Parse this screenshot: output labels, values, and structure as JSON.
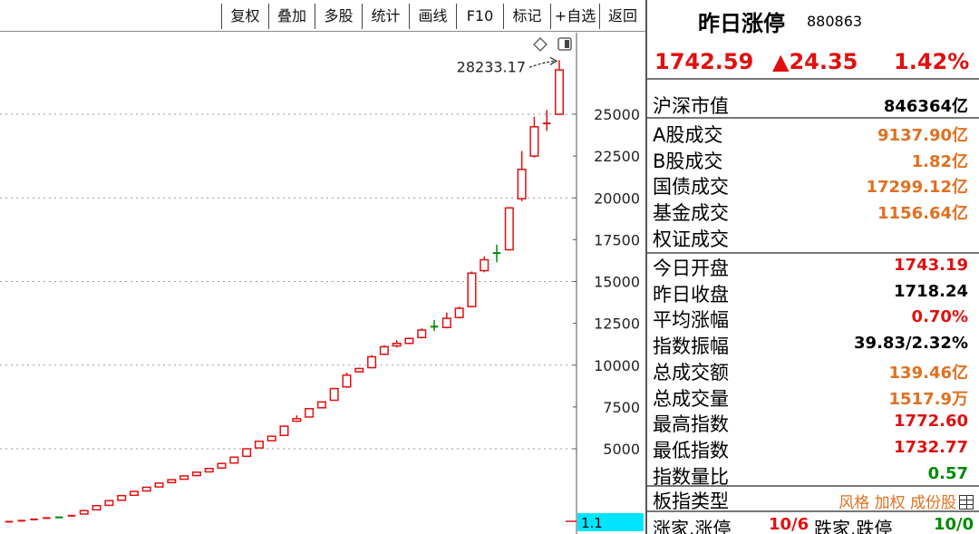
{
  "toolbar": {
    "buttons": [
      "复权",
      "叠加",
      "多股",
      "统计",
      "画线",
      "F10",
      "标记",
      "+自选",
      "返回"
    ]
  },
  "chart": {
    "y_axis_ticks": [
      "25000",
      "22500",
      "20000",
      "17500",
      "15000",
      "12500",
      "10000",
      "7500",
      "5000"
    ],
    "high_annotation": "28233.17",
    "cursor_box_value": "1.1",
    "cursor_box_color": "#00e5ff",
    "icons": [
      "diamond-icon",
      "panel-toggle-icon"
    ]
  },
  "chart_data": {
    "type": "candlestick",
    "title": "",
    "xlabel": "",
    "ylabel": "",
    "ylim": [
      0,
      30000
    ],
    "y_ticks": [
      5000,
      7500,
      10000,
      12500,
      15000,
      17500,
      20000,
      22500,
      25000
    ],
    "high_label": 28233.17,
    "up_color": "#e01010",
    "doji_color": "#008a00",
    "candles": [
      {
        "o": 600,
        "c": 640,
        "h": 660,
        "l": 580
      },
      {
        "o": 660,
        "c": 700,
        "h": 720,
        "l": 640
      },
      {
        "o": 740,
        "c": 780,
        "h": 800,
        "l": 720
      },
      {
        "o": 820,
        "c": 860,
        "h": 880,
        "l": 800
      },
      {
        "o": 900,
        "c": 900,
        "h": 920,
        "l": 880,
        "doji": true
      },
      {
        "o": 960,
        "c": 1000,
        "h": 1020,
        "l": 940
      },
      {
        "o": 1100,
        "c": 1300,
        "h": 1340,
        "l": 1080
      },
      {
        "o": 1350,
        "c": 1600,
        "h": 1640,
        "l": 1330
      },
      {
        "o": 1620,
        "c": 1900,
        "h": 1940,
        "l": 1600
      },
      {
        "o": 1920,
        "c": 2200,
        "h": 2240,
        "l": 1900
      },
      {
        "o": 2220,
        "c": 2450,
        "h": 2490,
        "l": 2200
      },
      {
        "o": 2480,
        "c": 2700,
        "h": 2740,
        "l": 2460
      },
      {
        "o": 2720,
        "c": 2950,
        "h": 2990,
        "l": 2700
      },
      {
        "o": 2980,
        "c": 3150,
        "h": 3190,
        "l": 2960
      },
      {
        "o": 3180,
        "c": 3380,
        "h": 3420,
        "l": 3160
      },
      {
        "o": 3400,
        "c": 3600,
        "h": 3640,
        "l": 3380
      },
      {
        "o": 3620,
        "c": 3820,
        "h": 3860,
        "l": 3600
      },
      {
        "o": 3850,
        "c": 4120,
        "h": 4160,
        "l": 3830
      },
      {
        "o": 4150,
        "c": 4500,
        "h": 4540,
        "l": 4130
      },
      {
        "o": 4550,
        "c": 5000,
        "h": 5040,
        "l": 4530
      },
      {
        "o": 5050,
        "c": 5450,
        "h": 5490,
        "l": 5030
      },
      {
        "o": 5480,
        "c": 5750,
        "h": 5790,
        "l": 5460
      },
      {
        "o": 5800,
        "c": 6350,
        "h": 6390,
        "l": 5780
      },
      {
        "o": 6650,
        "c": 6800,
        "h": 7000,
        "l": 6600
      },
      {
        "o": 6900,
        "c": 7400,
        "h": 7440,
        "l": 6880
      },
      {
        "o": 7450,
        "c": 7800,
        "h": 7840,
        "l": 7430
      },
      {
        "o": 7900,
        "c": 8600,
        "h": 8640,
        "l": 7880
      },
      {
        "o": 8700,
        "c": 9400,
        "h": 9550,
        "l": 8650
      },
      {
        "o": 9600,
        "c": 9800,
        "h": 9850,
        "l": 9550
      },
      {
        "o": 9850,
        "c": 10500,
        "h": 10600,
        "l": 9800
      },
      {
        "o": 10650,
        "c": 11100,
        "h": 11200,
        "l": 10600
      },
      {
        "o": 11150,
        "c": 11300,
        "h": 11500,
        "l": 11050
      },
      {
        "o": 11300,
        "c": 11600,
        "h": 11650,
        "l": 11250
      },
      {
        "o": 11650,
        "c": 12100,
        "h": 12200,
        "l": 11600
      },
      {
        "o": 12300,
        "c": 12300,
        "h": 12700,
        "l": 12050,
        "doji": true
      },
      {
        "o": 12250,
        "c": 12800,
        "h": 13150,
        "l": 12200
      },
      {
        "o": 12850,
        "c": 13400,
        "h": 13500,
        "l": 12800
      },
      {
        "o": 13500,
        "c": 15500,
        "h": 15600,
        "l": 13450
      },
      {
        "o": 15650,
        "c": 16300,
        "h": 16500,
        "l": 15550
      },
      {
        "o": 16700,
        "c": 16700,
        "h": 17200,
        "l": 16150,
        "doji": true
      },
      {
        "o": 16900,
        "c": 19400,
        "h": 19450,
        "l": 16850
      },
      {
        "o": 19950,
        "c": 21700,
        "h": 22800,
        "l": 19800
      },
      {
        "o": 22500,
        "c": 24250,
        "h": 24850,
        "l": 22400
      },
      {
        "o": 24450,
        "c": 24450,
        "h": 25250,
        "l": 24000
      },
      {
        "o": 25000,
        "c": 27650,
        "h": 28233.17,
        "l": 24950
      }
    ]
  },
  "info": {
    "name": "昨日涨停",
    "code": "880863",
    "price": "1742.59",
    "change": "▲24.35",
    "change_pct": "1.42%",
    "market_cap_label": "沪深市值",
    "market_cap_value": "846364亿",
    "rows_a": [
      {
        "label": "A股成交",
        "value": "9137.90亿",
        "color": "orange"
      },
      {
        "label": "B股成交",
        "value": "1.82亿",
        "color": "orange"
      },
      {
        "label": "国债成交",
        "value": "17299.12亿",
        "color": "orange"
      },
      {
        "label": "基金成交",
        "value": "1156.64亿",
        "color": "orange"
      },
      {
        "label": "权证成交",
        "value": "",
        "color": "orange"
      }
    ],
    "rows_b": [
      {
        "label": "今日开盘",
        "value": "1743.19",
        "color": "red"
      },
      {
        "label": "昨日收盘",
        "value": "1718.24",
        "color": "black"
      },
      {
        "label": "平均涨幅",
        "value": "0.70%",
        "color": "red"
      },
      {
        "label": "指数振幅",
        "value": "39.83/2.32%",
        "color": "black"
      },
      {
        "label": "总成交额",
        "value": "139.46亿",
        "color": "orange"
      },
      {
        "label": "总成交量",
        "value": "1517.9万",
        "color": "orange"
      },
      {
        "label": "最高指数",
        "value": "1772.60",
        "color": "red"
      },
      {
        "label": "最低指数",
        "value": "1732.77",
        "color": "red"
      },
      {
        "label": "指数量比",
        "value": "0.57",
        "color": "green"
      }
    ],
    "type_label": "板指类型",
    "type_value": "风格 加权 成份股",
    "up_label": "涨家.涨停",
    "up_value": "10/6",
    "down_label": "跌家.跌停",
    "down_value": "10/0"
  }
}
